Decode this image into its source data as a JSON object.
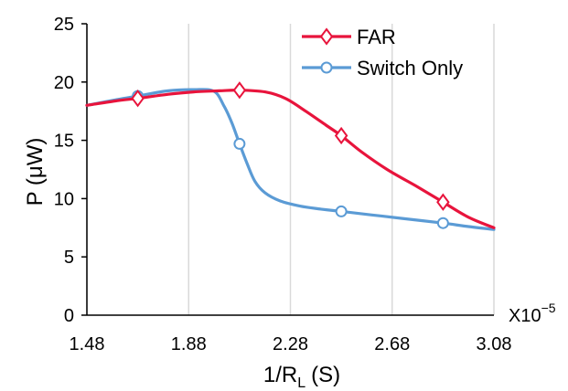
{
  "chart_data": {
    "type": "line",
    "xlabel": "1/R",
    "xlabel_sub": "L",
    "xlabel_unit": "(S)",
    "ylabel": "P (μW)",
    "x_multiplier": "X10",
    "x_multiplier_exp": "−5",
    "xlim": [
      1.48,
      3.08
    ],
    "ylim": [
      0,
      25
    ],
    "x_ticks": [
      "1.48",
      "1.88",
      "2.28",
      "2.68",
      "3.08"
    ],
    "x_tick_values": [
      1.48,
      1.88,
      2.28,
      2.68,
      3.08
    ],
    "y_ticks": [
      "0",
      "5",
      "10",
      "15",
      "20",
      "25"
    ],
    "y_tick_values": [
      0,
      5,
      10,
      15,
      20,
      25
    ],
    "grid": "vertical",
    "legend_position": "top-right",
    "series": [
      {
        "name": "FAR",
        "color": "#e8143c",
        "marker": "diamond",
        "markers": [
          [
            1.68,
            18.6
          ],
          [
            2.08,
            19.3
          ],
          [
            2.48,
            15.4
          ],
          [
            2.88,
            9.7
          ]
        ],
        "curve": [
          [
            1.48,
            18.0
          ],
          [
            1.6,
            18.4
          ],
          [
            1.68,
            18.6
          ],
          [
            1.8,
            18.95
          ],
          [
            1.9,
            19.15
          ],
          [
            2.0,
            19.25
          ],
          [
            2.08,
            19.3
          ],
          [
            2.18,
            19.15
          ],
          [
            2.26,
            18.6
          ],
          [
            2.34,
            17.5
          ],
          [
            2.42,
            16.3
          ],
          [
            2.48,
            15.4
          ],
          [
            2.56,
            14.0
          ],
          [
            2.66,
            12.5
          ],
          [
            2.78,
            11.0
          ],
          [
            2.88,
            9.7
          ],
          [
            2.98,
            8.4
          ],
          [
            3.08,
            7.5
          ]
        ]
      },
      {
        "name": "Switch Only",
        "color": "#5b9bd5",
        "marker": "circle",
        "markers": [
          [
            1.68,
            18.8
          ],
          [
            2.08,
            14.7
          ],
          [
            2.48,
            8.9
          ],
          [
            2.88,
            7.9
          ]
        ],
        "curve": [
          [
            1.48,
            18.0
          ],
          [
            1.6,
            18.5
          ],
          [
            1.68,
            18.8
          ],
          [
            1.8,
            19.25
          ],
          [
            1.9,
            19.35
          ],
          [
            1.98,
            19.2
          ],
          [
            2.02,
            17.9
          ],
          [
            2.05,
            16.5
          ],
          [
            2.08,
            14.7
          ],
          [
            2.11,
            13.0
          ],
          [
            2.14,
            11.5
          ],
          [
            2.18,
            10.5
          ],
          [
            2.24,
            9.8
          ],
          [
            2.32,
            9.35
          ],
          [
            2.4,
            9.1
          ],
          [
            2.48,
            8.9
          ],
          [
            2.6,
            8.6
          ],
          [
            2.72,
            8.3
          ],
          [
            2.88,
            7.9
          ],
          [
            2.98,
            7.6
          ],
          [
            3.08,
            7.35
          ]
        ]
      }
    ]
  }
}
